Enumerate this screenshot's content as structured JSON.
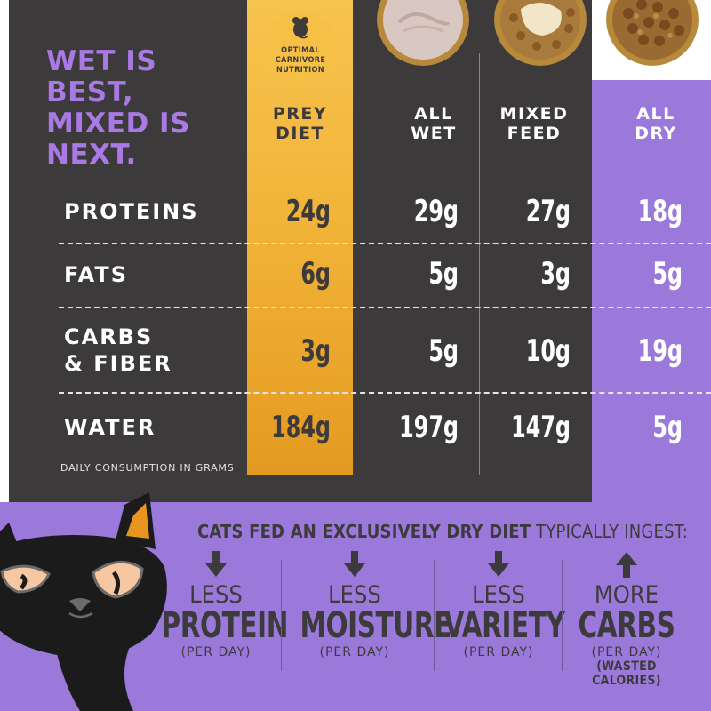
{
  "headline": [
    "WET IS",
    "BEST,",
    "MIXED IS",
    "NEXT."
  ],
  "badge": {
    "text": "OPTIMAL\nCARNIVORE\nNUTRITION"
  },
  "columns": {
    "prey": "PREY\nDIET",
    "wet": "ALL\nWET",
    "mixed": "MIXED\nFEED",
    "dry": "ALL\nDRY"
  },
  "rows": [
    {
      "label": "PROTEINS",
      "prey": "24g",
      "wet": "29g",
      "mixed": "27g",
      "dry": "18g"
    },
    {
      "label": "FATS",
      "prey": "6g",
      "wet": "5g",
      "mixed": "3g",
      "dry": "5g"
    },
    {
      "label": "CARBS\n& FIBER",
      "prey": "3g",
      "wet": "5g",
      "mixed": "10g",
      "dry": "19g"
    },
    {
      "label": "WATER",
      "prey": "184g",
      "wet": "197g",
      "mixed": "147g",
      "dry": "5g"
    }
  ],
  "footnote": "DAILY CONSUMPTION IN GRAMS",
  "ingest": {
    "title_bold": "CATS FED AN EXCLUSIVELY DRY DIET",
    "title_rest": " TYPICALLY INGEST:",
    "items": [
      {
        "direction": "down",
        "small": "LESS",
        "big": "PROTEIN",
        "sub": "(PER DAY)",
        "sub2": ""
      },
      {
        "direction": "down",
        "small": "LESS",
        "big": "MOISTURE",
        "sub": "(PER DAY)",
        "sub2": ""
      },
      {
        "direction": "down",
        "small": "LESS",
        "big": "VARIETY",
        "sub": "(PER DAY)",
        "sub2": ""
      },
      {
        "direction": "up",
        "small": "MORE",
        "big": "CARBS",
        "sub": "(PER DAY)",
        "sub2": "(WASTED CALORIES)"
      }
    ]
  },
  "icons": {
    "badge": "mouse-icon",
    "arrows": [
      "arrow-down-icon",
      "arrow-down-icon",
      "arrow-down-icon",
      "arrow-up-icon"
    ]
  },
  "colors": {
    "dark": "#3d3a3b",
    "purple": "#9b79db",
    "headline_purple": "#a97ae3",
    "gold": "#f2b43a"
  }
}
